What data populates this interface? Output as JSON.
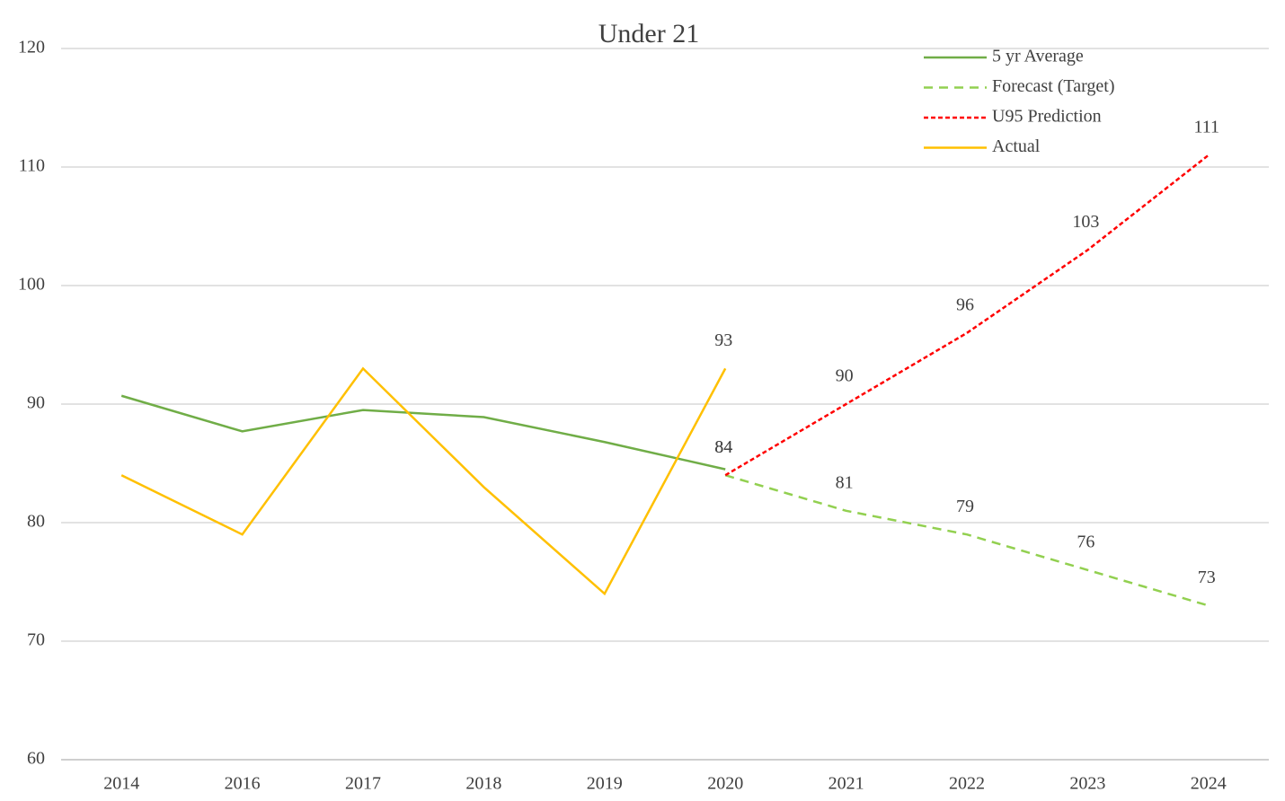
{
  "chart_data": {
    "type": "line",
    "title": "Under 21",
    "categories": [
      "2014",
      "2016",
      "2017",
      "2018",
      "2019",
      "2020",
      "2021",
      "2022",
      "2023",
      "2024"
    ],
    "ylim": [
      60,
      120
    ],
    "yticks": [
      60,
      70,
      80,
      90,
      100,
      110,
      120
    ],
    "grid": true,
    "legend": "top-right",
    "series": [
      {
        "name": "5 yr Average",
        "color": "#70ad47",
        "dash": "solid",
        "values": [
          90.7,
          87.7,
          89.5,
          88.9,
          86.8,
          84.5,
          null,
          null,
          null,
          null
        ]
      },
      {
        "name": "Forecast (Target)",
        "color": "#92d050",
        "dash": "dashed",
        "values": [
          null,
          null,
          null,
          null,
          null,
          84,
          81,
          79,
          76,
          73
        ],
        "value_labels": [
          null,
          null,
          null,
          null,
          null,
          "84",
          "81",
          "79",
          "76",
          "73"
        ]
      },
      {
        "name": "U95 Prediction",
        "color": "#ff0000",
        "dash": "dotted",
        "values": [
          null,
          null,
          null,
          null,
          null,
          84,
          90,
          96,
          103,
          111
        ],
        "value_labels": [
          null,
          null,
          null,
          null,
          null,
          "84",
          "90",
          "96",
          "103",
          "111"
        ]
      },
      {
        "name": "Actual",
        "color": "#ffc000",
        "dash": "solid",
        "values": [
          84,
          79,
          93,
          83,
          74,
          93,
          null,
          null,
          null,
          null
        ],
        "value_labels": [
          null,
          null,
          null,
          null,
          null,
          "93",
          null,
          null,
          null,
          null
        ]
      }
    ]
  }
}
